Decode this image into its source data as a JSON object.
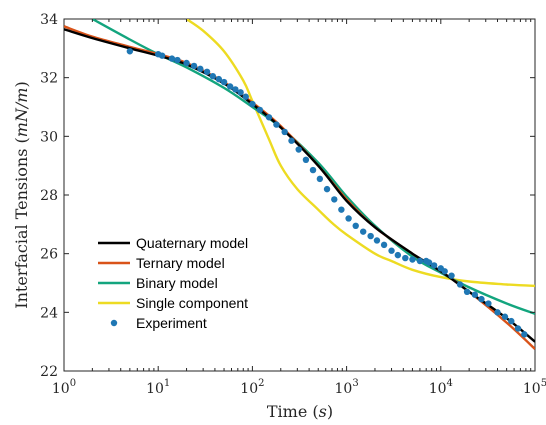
{
  "chart_data": {
    "type": "line",
    "xlabel": "Time (s)",
    "ylabel": "Interfacial Tensions (mN/m)",
    "xscale": "log",
    "xlim": [
      1,
      100000
    ],
    "ylim": [
      22,
      34
    ],
    "x_ticks": [
      {
        "value": 1,
        "base": "10",
        "exp": "0"
      },
      {
        "value": 10,
        "base": "10",
        "exp": "1"
      },
      {
        "value": 100,
        "base": "10",
        "exp": "2"
      },
      {
        "value": 1000,
        "base": "10",
        "exp": "3"
      },
      {
        "value": 10000,
        "base": "10",
        "exp": "4"
      },
      {
        "value": 100000,
        "base": "10",
        "exp": "5"
      }
    ],
    "y_ticks": [
      22,
      24,
      26,
      28,
      30,
      32,
      34
    ],
    "grid": false,
    "legend_position": "bottom-left",
    "series": [
      {
        "name": "Quaternary model",
        "kind": "line",
        "color": "#000000",
        "x": [
          1,
          2,
          5,
          10,
          20,
          50,
          100,
          200,
          500,
          1000,
          2000,
          5000,
          10000,
          20000,
          50000,
          100000
        ],
        "y": [
          33.65,
          33.35,
          33.0,
          32.75,
          32.45,
          31.8,
          31.1,
          30.3,
          29.0,
          27.8,
          26.9,
          26.0,
          25.4,
          24.7,
          23.8,
          23.0
        ]
      },
      {
        "name": "Ternary model",
        "kind": "line",
        "color": "#d95319",
        "x": [
          1,
          2,
          5,
          10,
          20,
          50,
          100,
          200,
          500,
          1000,
          2000,
          5000,
          10000,
          20000,
          50000,
          100000
        ],
        "y": [
          33.75,
          33.4,
          33.05,
          32.8,
          32.5,
          31.85,
          31.15,
          30.35,
          29.0,
          27.85,
          26.9,
          26.0,
          25.4,
          24.7,
          23.65,
          22.75
        ]
      },
      {
        "name": "Binary model",
        "kind": "line",
        "color": "#13a57e",
        "x": [
          2,
          5,
          10,
          20,
          50,
          100,
          200,
          500,
          1000,
          2000,
          5000,
          10000,
          20000,
          50000,
          100000
        ],
        "y": [
          34.0,
          33.3,
          32.8,
          32.35,
          31.65,
          31.0,
          30.3,
          29.1,
          27.95,
          26.95,
          25.9,
          25.35,
          24.85,
          24.3,
          23.95
        ]
      },
      {
        "name": "Single component",
        "kind": "line",
        "color": "#eddb22",
        "x": [
          20,
          30,
          50,
          80,
          100,
          150,
          200,
          300,
          500,
          700,
          1000,
          2000,
          3000,
          5000,
          10000,
          20000,
          50000,
          100000
        ],
        "y": [
          34.0,
          33.6,
          32.9,
          31.9,
          31.2,
          29.9,
          29.0,
          28.2,
          27.5,
          27.05,
          26.65,
          26.0,
          25.75,
          25.45,
          25.2,
          25.05,
          24.95,
          24.9
        ]
      },
      {
        "name": "Experiment",
        "kind": "scatter",
        "color": "#1f77b4",
        "x": [
          5,
          10,
          11,
          14,
          16,
          20,
          24,
          28,
          33,
          38,
          44,
          50,
          58,
          66,
          75,
          85,
          100,
          120,
          150,
          180,
          220,
          260,
          310,
          370,
          440,
          520,
          620,
          740,
          880,
          1050,
          1250,
          1500,
          1800,
          2100,
          2500,
          3000,
          3500,
          4200,
          5000,
          6000,
          7000,
          7500,
          8500,
          10000,
          11000,
          13000,
          16000,
          19000,
          23000,
          27000,
          32000,
          40000,
          48000,
          56000,
          66000,
          77000
        ],
        "y": [
          32.9,
          32.8,
          32.75,
          32.65,
          32.6,
          32.5,
          32.4,
          32.3,
          32.2,
          32.05,
          31.95,
          31.85,
          31.7,
          31.6,
          31.5,
          31.35,
          31.1,
          30.9,
          30.65,
          30.4,
          30.15,
          29.85,
          29.55,
          29.2,
          28.85,
          28.55,
          28.2,
          27.85,
          27.5,
          27.2,
          26.95,
          26.75,
          26.6,
          26.45,
          26.3,
          26.1,
          25.95,
          25.85,
          25.8,
          25.75,
          25.75,
          25.7,
          25.6,
          25.5,
          25.4,
          25.25,
          24.95,
          24.7,
          24.6,
          24.45,
          24.3,
          24.0,
          23.85,
          23.7,
          23.45,
          23.25
        ]
      }
    ]
  }
}
